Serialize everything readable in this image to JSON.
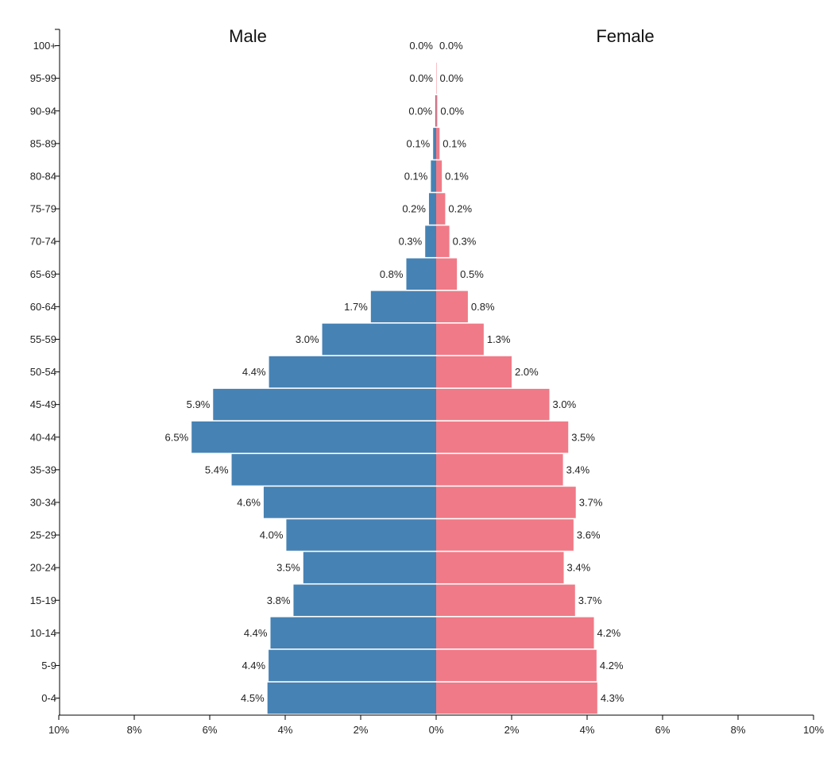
{
  "chart_data": {
    "type": "bar",
    "orientation": "horizontal-pyramid",
    "categories": [
      "100+",
      "95-99",
      "90-94",
      "85-89",
      "80-84",
      "75-79",
      "70-74",
      "65-69",
      "60-64",
      "55-59",
      "50-54",
      "45-49",
      "40-44",
      "35-39",
      "30-34",
      "25-29",
      "20-24",
      "15-19",
      "10-14",
      "5-9",
      "0-4"
    ],
    "series": [
      {
        "name": "Male",
        "color": "#4682b4",
        "values": [
          0.0,
          0.0,
          0.02,
          0.08,
          0.14,
          0.19,
          0.29,
          0.79,
          1.73,
          3.02,
          4.43,
          5.91,
          6.48,
          5.42,
          4.57,
          3.97,
          3.52,
          3.78,
          4.39,
          4.44,
          4.47
        ],
        "labels": [
          "0.0%",
          "0.0%",
          "0.0%",
          "0.1%",
          "0.1%",
          "0.2%",
          "0.3%",
          "0.8%",
          "1.7%",
          "3.0%",
          "4.4%",
          "5.9%",
          "6.5%",
          "5.4%",
          "4.6%",
          "4.0%",
          "3.5%",
          "3.8%",
          "4.4%",
          "4.4%",
          "4.5%"
        ]
      },
      {
        "name": "Female",
        "color": "#f07a87",
        "values": [
          0.0,
          0.01,
          0.03,
          0.09,
          0.15,
          0.24,
          0.35,
          0.55,
          0.84,
          1.26,
          2.0,
          3.0,
          3.5,
          3.36,
          3.7,
          3.64,
          3.38,
          3.68,
          4.18,
          4.25,
          4.27
        ],
        "labels": [
          "0.0%",
          "0.0%",
          "0.0%",
          "0.1%",
          "0.1%",
          "0.2%",
          "0.3%",
          "0.5%",
          "0.8%",
          "1.3%",
          "2.0%",
          "3.0%",
          "3.5%",
          "3.4%",
          "3.7%",
          "3.6%",
          "3.4%",
          "3.7%",
          "4.2%",
          "4.2%",
          "4.3%"
        ]
      }
    ],
    "xlim": [
      -10,
      10
    ],
    "x_ticks": [
      -10,
      -8,
      -6,
      -4,
      -2,
      0,
      2,
      4,
      6,
      8,
      10
    ],
    "x_tick_labels": [
      "10%",
      "8%",
      "6%",
      "4%",
      "2%",
      "0%",
      "2%",
      "4%",
      "6%",
      "8%",
      "10%"
    ],
    "grid": false,
    "legend": "none"
  }
}
